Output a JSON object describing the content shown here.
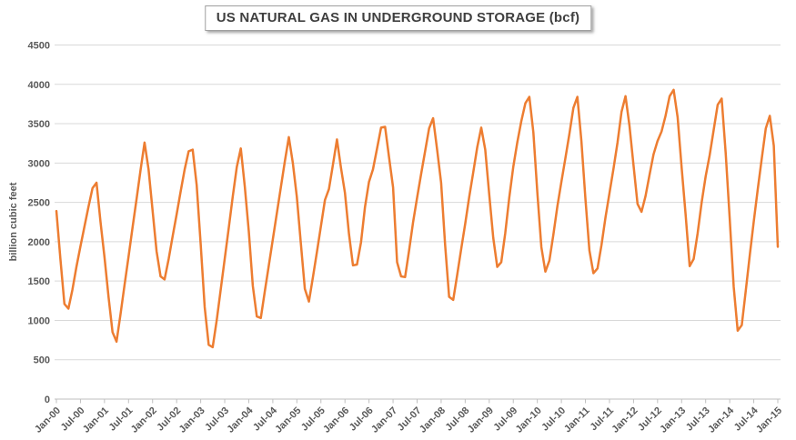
{
  "chart_data": {
    "type": "line",
    "title": "US NATURAL GAS IN UNDERGROUND STORAGE (bcf)",
    "ylabel": "billion cubic feet",
    "xlabel": "",
    "legend": "none",
    "grid": "horizontal",
    "ylim": [
      0,
      4500
    ],
    "ytick_step": 500,
    "y_tick_labels": [
      "0",
      "500",
      "1000",
      "1500",
      "2000",
      "2500",
      "3000",
      "3500",
      "4000",
      "4500"
    ],
    "x_frequency": "monthly",
    "x_range": [
      "Jan-00",
      "Jan-15"
    ],
    "x_tick_labels": [
      "Jan-00",
      "Jul-00",
      "Jan-01",
      "Jul-01",
      "Jan-02",
      "Jul-02",
      "Jan-03",
      "Jul-03",
      "Jan-04",
      "Jul-04",
      "Jan-05",
      "Jul-05",
      "Jan-06",
      "Jul-06",
      "Jan-07",
      "Jul-07",
      "Jan-08",
      "Jul-08",
      "Jan-09",
      "Jul-09",
      "Jan-10",
      "Jul-10",
      "Jan-11",
      "Jul-11",
      "Jan-12",
      "Jul-12",
      "Jan-13",
      "Jul-13",
      "Jan-14",
      "Jul-14",
      "Jan-15"
    ],
    "series": [
      {
        "name": "US natural gas in underground storage",
        "units": "bcf",
        "values": [
          2390,
          1780,
          1210,
          1150,
          1390,
          1680,
          1940,
          2190,
          2440,
          2680,
          2750,
          2250,
          1800,
          1300,
          850,
          730,
          1080,
          1450,
          1810,
          2180,
          2540,
          2910,
          3260,
          2920,
          2400,
          1880,
          1560,
          1520,
          1780,
          2070,
          2350,
          2640,
          2920,
          3150,
          3170,
          2720,
          1970,
          1170,
          690,
          660,
          1000,
          1390,
          1780,
          2170,
          2570,
          2950,
          3185,
          2700,
          2130,
          1440,
          1050,
          1030,
          1370,
          1700,
          2030,
          2360,
          2690,
          3020,
          3330,
          3000,
          2570,
          1980,
          1400,
          1240,
          1550,
          1870,
          2200,
          2530,
          2670,
          2980,
          3300,
          2940,
          2620,
          2100,
          1700,
          1710,
          1990,
          2440,
          2760,
          2920,
          3180,
          3450,
          3460,
          3070,
          2690,
          1740,
          1560,
          1550,
          1890,
          2250,
          2560,
          2860,
          3150,
          3440,
          3570,
          3170,
          2750,
          1960,
          1300,
          1260,
          1580,
          1910,
          2230,
          2570,
          2880,
          3200,
          3450,
          3170,
          2600,
          2050,
          1680,
          1740,
          2110,
          2560,
          2950,
          3260,
          3530,
          3760,
          3840,
          3390,
          2620,
          1930,
          1620,
          1760,
          2090,
          2450,
          2760,
          3060,
          3370,
          3700,
          3840,
          3280,
          2550,
          1890,
          1600,
          1660,
          1960,
          2310,
          2620,
          2930,
          3260,
          3650,
          3850,
          3470,
          2970,
          2480,
          2380,
          2580,
          2850,
          3110,
          3280,
          3400,
          3600,
          3850,
          3930,
          3580,
          2940,
          2340,
          1690,
          1780,
          2110,
          2500,
          2830,
          3100,
          3420,
          3740,
          3820,
          3130,
          2300,
          1430,
          870,
          940,
          1380,
          1830,
          2260,
          2670,
          3060,
          3440,
          3600,
          3220,
          1935
        ]
      }
    ],
    "colors": {
      "line": "#ED7D31",
      "grid": "#D9D9D9",
      "axis": "#BFBFBF",
      "labels": "#595959",
      "title_text": "#3F3F3F",
      "background": "#FFFFFF"
    }
  }
}
